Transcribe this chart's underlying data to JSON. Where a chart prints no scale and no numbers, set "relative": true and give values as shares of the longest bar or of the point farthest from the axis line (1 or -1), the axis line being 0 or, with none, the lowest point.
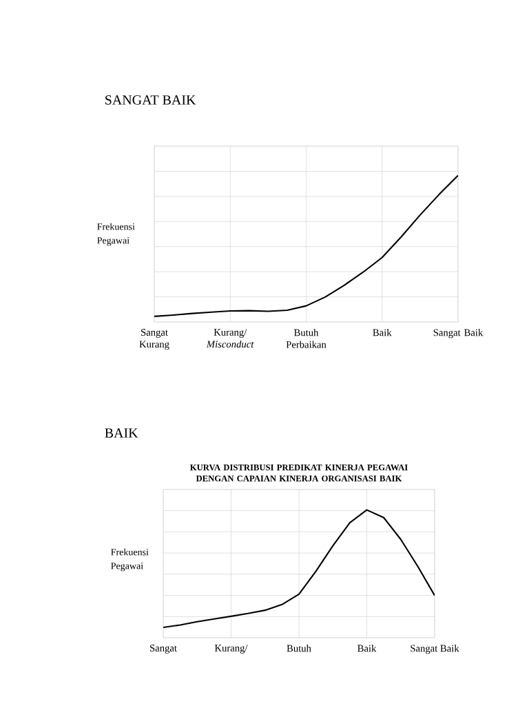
{
  "chart_data": [
    {
      "type": "line",
      "title": "SANGAT BAIK",
      "ylabel": "Frekuensi Pegawai",
      "relative": true,
      "grid": true,
      "marker": "none",
      "line_style": "solid",
      "categories": [
        "Sangat Kurang",
        null,
        null,
        null,
        "Kurang/ *Misconduct*",
        null,
        null,
        null,
        "Butuh Perbaikan",
        null,
        null,
        null,
        "Baik",
        null,
        null,
        null,
        "Sangat Baik"
      ],
      "series": [
        {
          "color": "#000000",
          "values": [
            0.038,
            0.047,
            0.058,
            0.067,
            0.075,
            0.077,
            0.073,
            0.08,
            0.11,
            0.17,
            0.25,
            0.34,
            0.44,
            0.58,
            0.73,
            0.87,
            1.0
          ]
        }
      ]
    },
    {
      "type": "line",
      "title": "BAIK",
      "subtitle": "KURVA DISTRIBUSI PREDIKAT KINERJA PEGAWAI DENGAN CAPAIAN KINERJA ORGANISASI BAIK",
      "ylabel": "Frekuensi Pegawai",
      "relative": true,
      "grid": true,
      "marker": "none",
      "line_style": "solid",
      "categories": [
        "Sangat",
        null,
        null,
        null,
        "Kurang/",
        null,
        null,
        null,
        "Butuh",
        null,
        null,
        null,
        "Baik",
        null,
        null,
        null,
        "Sangat Baik"
      ],
      "series": [
        {
          "color": "#000000",
          "values": [
            0.081,
            0.1,
            0.125,
            0.147,
            0.168,
            0.19,
            0.215,
            0.26,
            0.341,
            0.52,
            0.72,
            0.9,
            1.0,
            0.94,
            0.77,
            0.56,
            0.331
          ]
        }
      ]
    }
  ]
}
